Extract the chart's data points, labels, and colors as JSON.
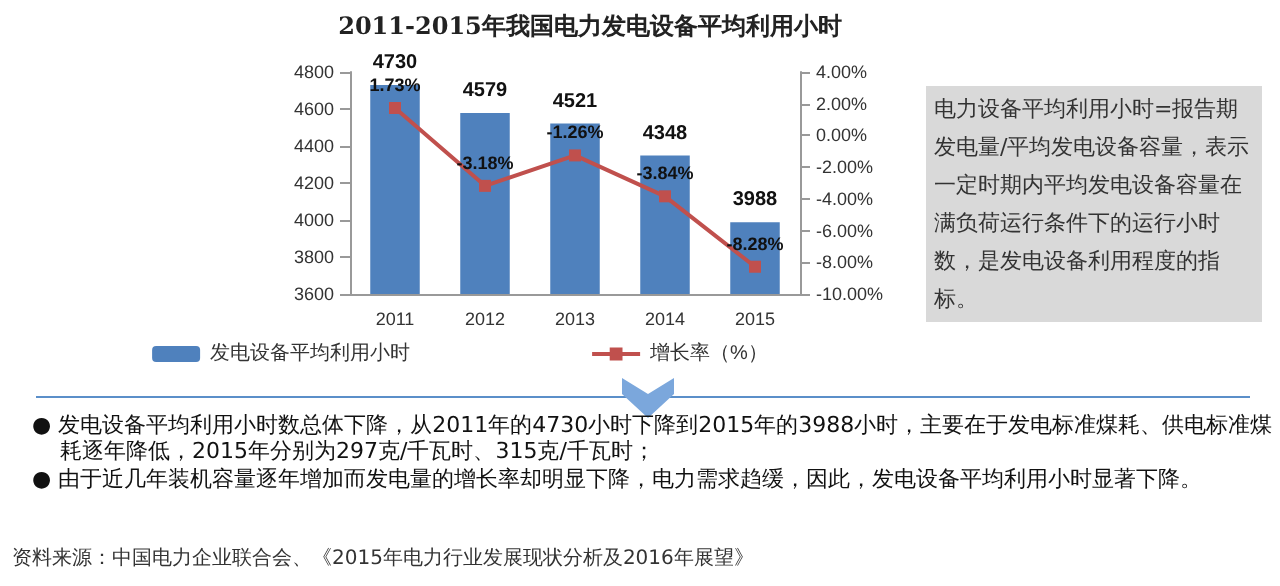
{
  "chart_data": {
    "type": "bar",
    "title": "2011-2015年我国电力发电设备平均利用小时",
    "categories": [
      "2011",
      "2012",
      "2013",
      "2014",
      "2015"
    ],
    "series": [
      {
        "name": "发电设备平均利用小时",
        "color": "#4f81bd",
        "values": [
          4730,
          4579,
          4521,
          4348,
          3988
        ]
      },
      {
        "name": "增长率（%）",
        "type": "line",
        "axis": "y2",
        "color": "#c0504d",
        "marker": "square",
        "values": [
          1.73,
          -3.18,
          -1.26,
          -3.84,
          -8.28
        ],
        "value_labels": [
          "1.73%",
          "-3.18%",
          "-1.26%",
          "-3.84%",
          "-8.28%"
        ]
      }
    ],
    "data_labels": true,
    "ylim": [
      3600,
      4800
    ],
    "yticks": [
      3600,
      3800,
      4000,
      4200,
      4400,
      4600,
      4800
    ],
    "y2lim": [
      -10,
      4
    ],
    "y2ticks": [
      {
        "value": -10,
        "label": "-10.00%"
      },
      {
        "value": -8,
        "label": "-8.00%"
      },
      {
        "value": -6,
        "label": "-6.00%"
      },
      {
        "value": -4,
        "label": "-4.00%"
      },
      {
        "value": -2,
        "label": "-2.00%"
      },
      {
        "value": 0,
        "label": "0.00%"
      },
      {
        "value": 2,
        "label": "2.00%"
      },
      {
        "value": 4,
        "label": "4.00%"
      }
    ],
    "legend": "bottom",
    "annotations": [
      "电力设备平均利用小时=报告期发电量/平均发电设备容量，表示一定时期内平均发电设备容量在满负荷运行条件下的运行小时数，是发电设备利用程度的指标。",
      "● 发电设备平均利用小时数总体下降，从2011年的4730小时下降到2015年的3988小时，主要在于发电标准煤耗、供电标准煤耗逐年降低，2015年分别为297克/千瓦时、315克/千瓦时；",
      "● 由于近几年装机容量逐年增加而发电量的增长率却明显下降，电力需求趋缓，因此，发电设备平均利用小时显著下降。",
      "资料来源：中国电力企业联合会、《2015年电力行业发展现状分析及2016年展望》"
    ]
  }
}
